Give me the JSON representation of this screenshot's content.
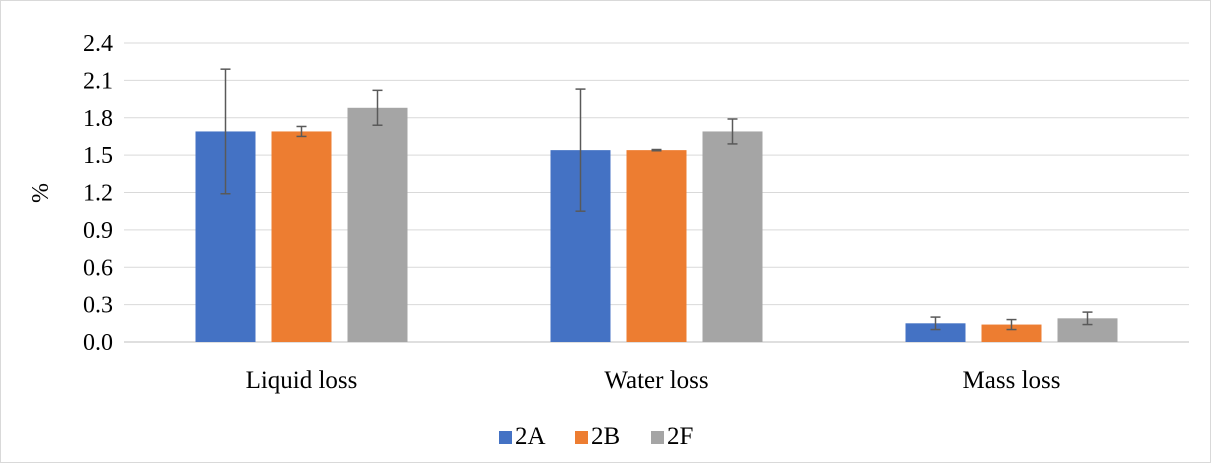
{
  "chart_data": {
    "type": "bar",
    "title": "",
    "xlabel": "",
    "ylabel": "%",
    "ylim": [
      0,
      2.4
    ],
    "yticks": [
      "0.0",
      "0.3",
      "0.6",
      "0.9",
      "1.2",
      "1.5",
      "1.8",
      "2.1",
      "2.4"
    ],
    "categories": [
      "Liquid loss",
      "Water loss",
      "Mass loss"
    ],
    "series": [
      {
        "name": "2A",
        "color": "#4472C4",
        "values": [
          1.69,
          1.54,
          0.15
        ],
        "errors": [
          0.5,
          0.49,
          0.05
        ]
      },
      {
        "name": "2B",
        "color": "#ED7D31",
        "values": [
          1.69,
          1.54,
          0.14
        ],
        "errors": [
          0.04,
          0.005,
          0.04
        ]
      },
      {
        "name": "2F",
        "color": "#A5A5A5",
        "values": [
          1.88,
          1.69,
          0.19
        ],
        "errors": [
          0.14,
          0.1,
          0.05
        ]
      }
    ],
    "grid": true,
    "legend_position": "bottom"
  }
}
